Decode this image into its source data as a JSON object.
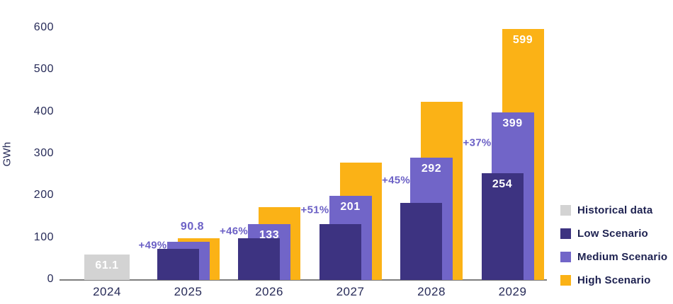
{
  "chart_data": {
    "type": "bar",
    "title": "",
    "ylabel": "GWh",
    "xlabel": "",
    "ylim": [
      0,
      600
    ],
    "yticks": [
      0,
      100,
      200,
      300,
      400,
      500,
      600
    ],
    "grid": false,
    "legend_position": "right",
    "categories": [
      "2024",
      "2025",
      "2026",
      "2027",
      "2028",
      "2029"
    ],
    "series": [
      {
        "key": "historical",
        "name": "Historical data",
        "color": "#d3d3d3",
        "values": [
          61.1,
          null,
          null,
          null,
          null,
          null
        ]
      },
      {
        "key": "low",
        "name": "Low Scenario",
        "color": "#3d3381",
        "values": [
          null,
          75,
          99,
          133,
          183,
          254
        ]
      },
      {
        "key": "medium",
        "name": "Medium Scenario",
        "color": "#7165c8",
        "values": [
          null,
          90.8,
          133,
          201,
          292,
          399
        ]
      },
      {
        "key": "high",
        "name": "High Scenario",
        "color": "#fbb216",
        "values": [
          null,
          100,
          173,
          280,
          425,
          599
        ]
      }
    ],
    "bar_labels": [
      {
        "category": "2024",
        "series": "historical",
        "text": "61.1",
        "placement": "inside"
      },
      {
        "category": "2025",
        "series": "medium",
        "text": "90.8",
        "placement": "above"
      },
      {
        "category": "2026",
        "series": "medium",
        "text": "133",
        "placement": "inside"
      },
      {
        "category": "2027",
        "series": "medium",
        "text": "201",
        "placement": "inside"
      },
      {
        "category": "2028",
        "series": "medium",
        "text": "292",
        "placement": "inside"
      },
      {
        "category": "2029",
        "series": "low",
        "text": "254",
        "placement": "inside"
      },
      {
        "category": "2029",
        "series": "medium",
        "text": "399",
        "placement": "inside"
      },
      {
        "category": "2029",
        "series": "high",
        "text": "599",
        "placement": "inside"
      }
    ],
    "growth_labels": [
      {
        "category": "2025",
        "text": "+49%"
      },
      {
        "category": "2026",
        "text": "+46%"
      },
      {
        "category": "2027",
        "text": "+51%"
      },
      {
        "category": "2028",
        "text": "+45%"
      },
      {
        "category": "2029",
        "text": "+37%"
      }
    ]
  },
  "colors": {
    "historical": "#d3d3d3",
    "low_scenario": "#3d3381",
    "medium_scenario": "#7165c8",
    "high_scenario": "#fbb216",
    "annotation_purple": "#6c61c6",
    "axis_text": "#272b58",
    "legend_text": "#1d2150",
    "axis_line": "#7d7d7d"
  }
}
